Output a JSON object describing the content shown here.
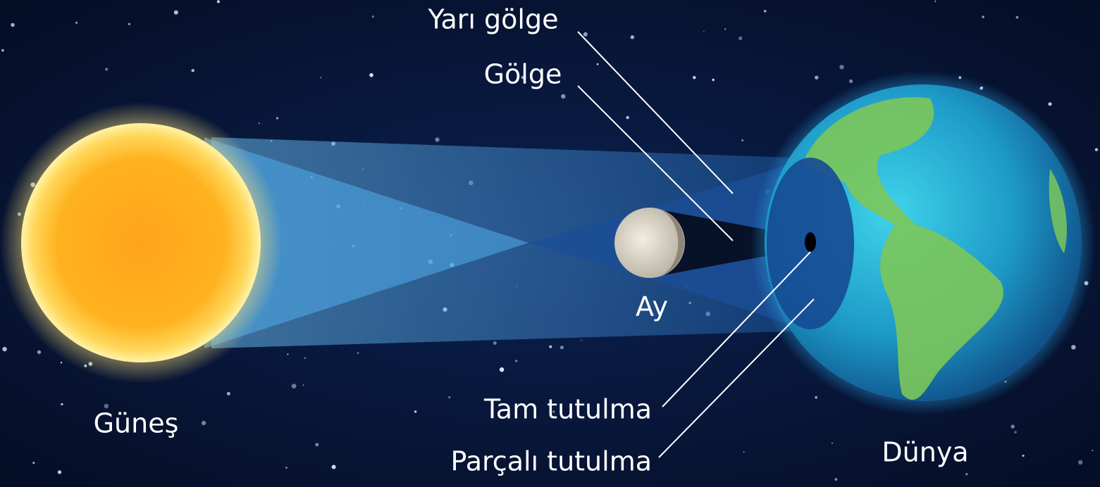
{
  "labels": {
    "penumbra": "Yarı gölge",
    "umbra": "Gölge",
    "moon": "Ay",
    "sun": "Güneş",
    "earth": "Dünya",
    "total": "Tam tutulma",
    "partial": "Parçalı tutulma"
  }
}
